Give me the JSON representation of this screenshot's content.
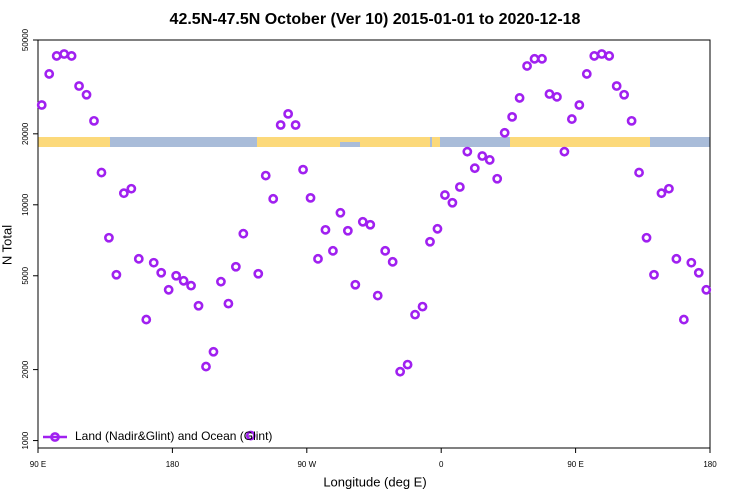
{
  "chart_data": {
    "type": "scatter",
    "title": "42.5N-47.5N October (Ver 10)   2015-01-01 to 2020-12-18",
    "x_label": "Longitude (deg E)",
    "y_label": "N Total",
    "log_y": true,
    "legend_position": "bottom-left",
    "xlim": [
      90,
      540
    ],
    "xticks": [
      {
        "value": 90,
        "label": "90 E"
      },
      {
        "value": 180,
        "label": "180"
      },
      {
        "value": 270,
        "label": "90 W"
      },
      {
        "value": 360,
        "label": "0"
      },
      {
        "value": 450,
        "label": "90 E"
      },
      {
        "value": 540,
        "label": "180"
      }
    ],
    "ylim": [
      930,
      50000
    ],
    "yticks": [
      1000,
      2000,
      5000,
      10000,
      20000,
      50000
    ],
    "series": [
      {
        "name": "Land (Nadir&Glint) and Ocean (Glint)",
        "color": "#a020f0",
        "x": [
          92.5,
          97.5,
          102.5,
          107.5,
          112.5,
          117.5,
          122.5,
          127.5,
          132.5,
          137.5,
          142.5,
          147.5,
          152.5,
          157.5,
          162.5,
          167.5,
          172.5,
          177.5,
          182.5,
          187.5,
          192.5,
          197.5,
          202.5,
          207.5,
          212.5,
          217.5,
          222.5,
          227.5,
          232.5,
          237.5,
          242.5,
          247.5,
          252.5,
          257.5,
          262.5,
          267.5,
          272.5,
          277.5,
          282.5,
          287.5,
          292.5,
          297.5,
          302.5,
          307.5,
          312.5,
          317.5,
          322.5,
          327.5,
          332.5,
          337.5,
          342.5,
          347.5,
          352.5,
          357.5,
          362.5,
          367.5,
          372.5,
          377.5,
          382.5,
          387.5,
          392.5,
          397.5,
          402.5,
          407.5,
          412.5,
          417.5,
          422.5,
          427.5,
          432.5,
          437.5,
          442.5,
          447.5,
          452.5,
          457.5,
          462.5,
          467.5,
          472.5,
          477.5,
          482.5,
          487.5,
          492.5,
          497.5,
          502.5,
          507.5,
          512.5,
          517.5,
          522.5,
          527.5,
          532.5,
          537.5
        ],
        "values": [
          26500,
          35900,
          42800,
          43600,
          42800,
          31900,
          29300,
          22700,
          13700,
          7250,
          5050,
          11200,
          11700,
          5900,
          3260,
          5680,
          5150,
          4360,
          5000,
          4760,
          4540,
          3730,
          2060,
          2380,
          4720,
          3810,
          5460,
          7540,
          1050,
          5100,
          13300,
          10600,
          21800,
          24300,
          21800,
          14100,
          10700,
          5900,
          7830,
          6380,
          9250,
          7760,
          4580,
          8470,
          8230,
          4120,
          6380,
          5730,
          1960,
          2100,
          3420,
          3700,
          6970,
          7910,
          11000,
          10200,
          11900,
          16800,
          14300,
          16100,
          15500,
          12900,
          20200,
          23600,
          28400,
          38800,
          41600,
          41600,
          29500,
          28700,
          16800,
          23100,
          26500,
          35900,
          42800,
          43600,
          42800,
          31900,
          29300,
          22700,
          13700,
          7250,
          5050,
          11200,
          11700,
          5900,
          3260,
          5680,
          5150,
          4360
        ]
      }
    ]
  }
}
